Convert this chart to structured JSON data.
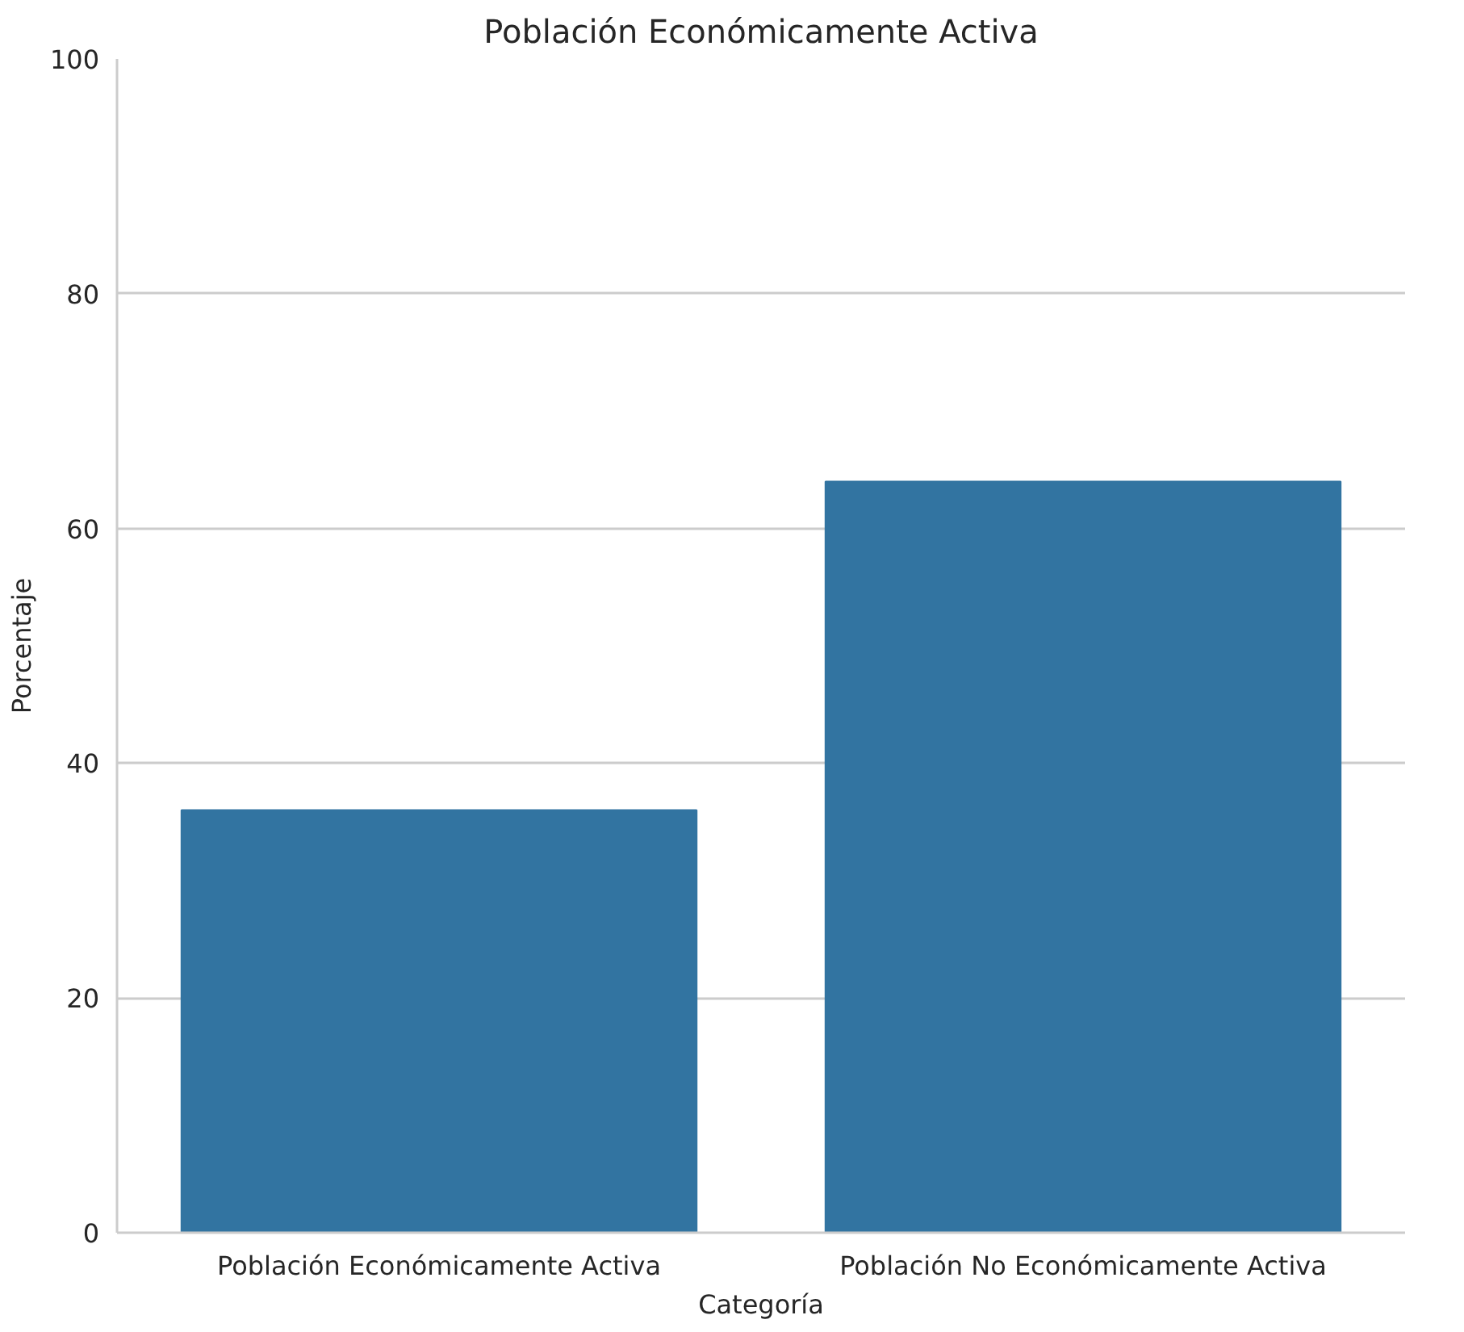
{
  "chart_data": {
    "type": "bar",
    "title": "Población Económicamente Activa",
    "xlabel": "Categoría",
    "ylabel": "Porcentaje",
    "categories": [
      "Población Económicamente Activa",
      "Población No Económicamente Activa"
    ],
    "values": [
      36,
      64
    ],
    "color": "#3274a1",
    "ylim": [
      0,
      100
    ],
    "yticks": [
      0,
      20,
      40,
      60,
      80,
      100
    ],
    "grid": "y"
  }
}
